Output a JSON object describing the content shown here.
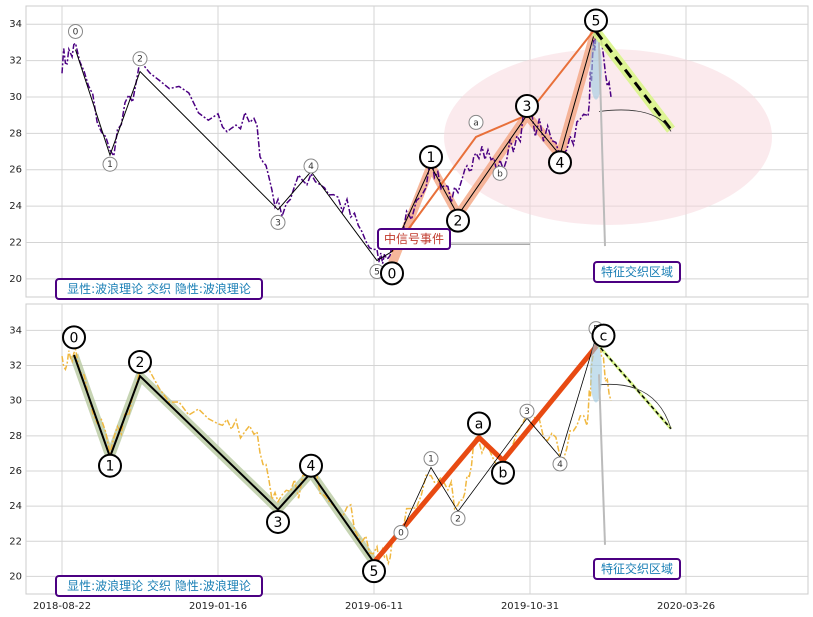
{
  "chart_data": {
    "type": "line",
    "x_axis": {
      "labels": [
        "2018-08-22",
        "2019-01-16",
        "2019-06-11",
        "2019-10-31",
        "2020-03-26"
      ],
      "range": [
        0,
        22
      ]
    },
    "panels": [
      {
        "name": "top",
        "ylim": [
          19,
          35
        ],
        "yticks": [
          20,
          22,
          24,
          26,
          28,
          30,
          32,
          34
        ],
        "grid": true,
        "price_color": "#4b0082",
        "label_box": "显性:波浪理论 交织 隐性:波浪理论",
        "signal_box": "中信号事件",
        "zone_box": "特征交织区域",
        "small_waves": [
          {
            "label": "0",
            "x": 0.45,
            "y": 33.6
          },
          {
            "label": "1",
            "x": 1.6,
            "y": 26.3
          },
          {
            "label": "2",
            "x": 2.6,
            "y": 32.1
          },
          {
            "label": "3",
            "x": 7.2,
            "y": 23.1
          },
          {
            "label": "4",
            "x": 8.3,
            "y": 26.2
          },
          {
            "label": "5",
            "x": 10.5,
            "y": 20.4
          },
          {
            "label": "a",
            "x": 13.8,
            "y": 28.6
          },
          {
            "label": "b",
            "x": 14.6,
            "y": 25.8
          }
        ],
        "big_waves": [
          {
            "label": "0",
            "x": 11.0,
            "y": 20.3
          },
          {
            "label": "1",
            "x": 12.3,
            "y": 26.7
          },
          {
            "label": "2",
            "x": 13.2,
            "y": 23.2
          },
          {
            "label": "3",
            "x": 15.5,
            "y": 29.5
          },
          {
            "label": "4",
            "x": 16.6,
            "y": 26.4
          },
          {
            "label": "5",
            "x": 17.8,
            "y": 34.2
          }
        ]
      },
      {
        "name": "bottom",
        "ylim": [
          19,
          35.5
        ],
        "yticks": [
          20,
          22,
          24,
          26,
          28,
          30,
          32,
          34
        ],
        "grid": true,
        "price_color": "#f0b840",
        "label_box": "显性:波浪理论 交织 隐性:波浪理论",
        "zone_box": "特征交织区域",
        "small_waves": [
          {
            "label": "0",
            "x": 11.3,
            "y": 22.5
          },
          {
            "label": "1",
            "x": 12.3,
            "y": 26.7
          },
          {
            "label": "2",
            "x": 13.2,
            "y": 23.3
          },
          {
            "label": "3",
            "x": 15.5,
            "y": 29.4
          },
          {
            "label": "4",
            "x": 16.6,
            "y": 26.4
          },
          {
            "label": "5",
            "x": 17.8,
            "y": 34.1
          }
        ],
        "big_waves": [
          {
            "label": "0",
            "x": 0.4,
            "y": 33.6
          },
          {
            "label": "1",
            "x": 1.6,
            "y": 26.3
          },
          {
            "label": "2",
            "x": 2.6,
            "y": 32.2
          },
          {
            "label": "3",
            "x": 7.2,
            "y": 23.1
          },
          {
            "label": "4",
            "x": 8.3,
            "y": 26.3
          },
          {
            "label": "5",
            "x": 10.4,
            "y": 20.3
          },
          {
            "label": "a",
            "x": 13.9,
            "y": 28.7
          },
          {
            "label": "b",
            "x": 14.7,
            "y": 25.9
          },
          {
            "label": "c",
            "x": 18.05,
            "y": 33.7
          }
        ]
      }
    ]
  }
}
